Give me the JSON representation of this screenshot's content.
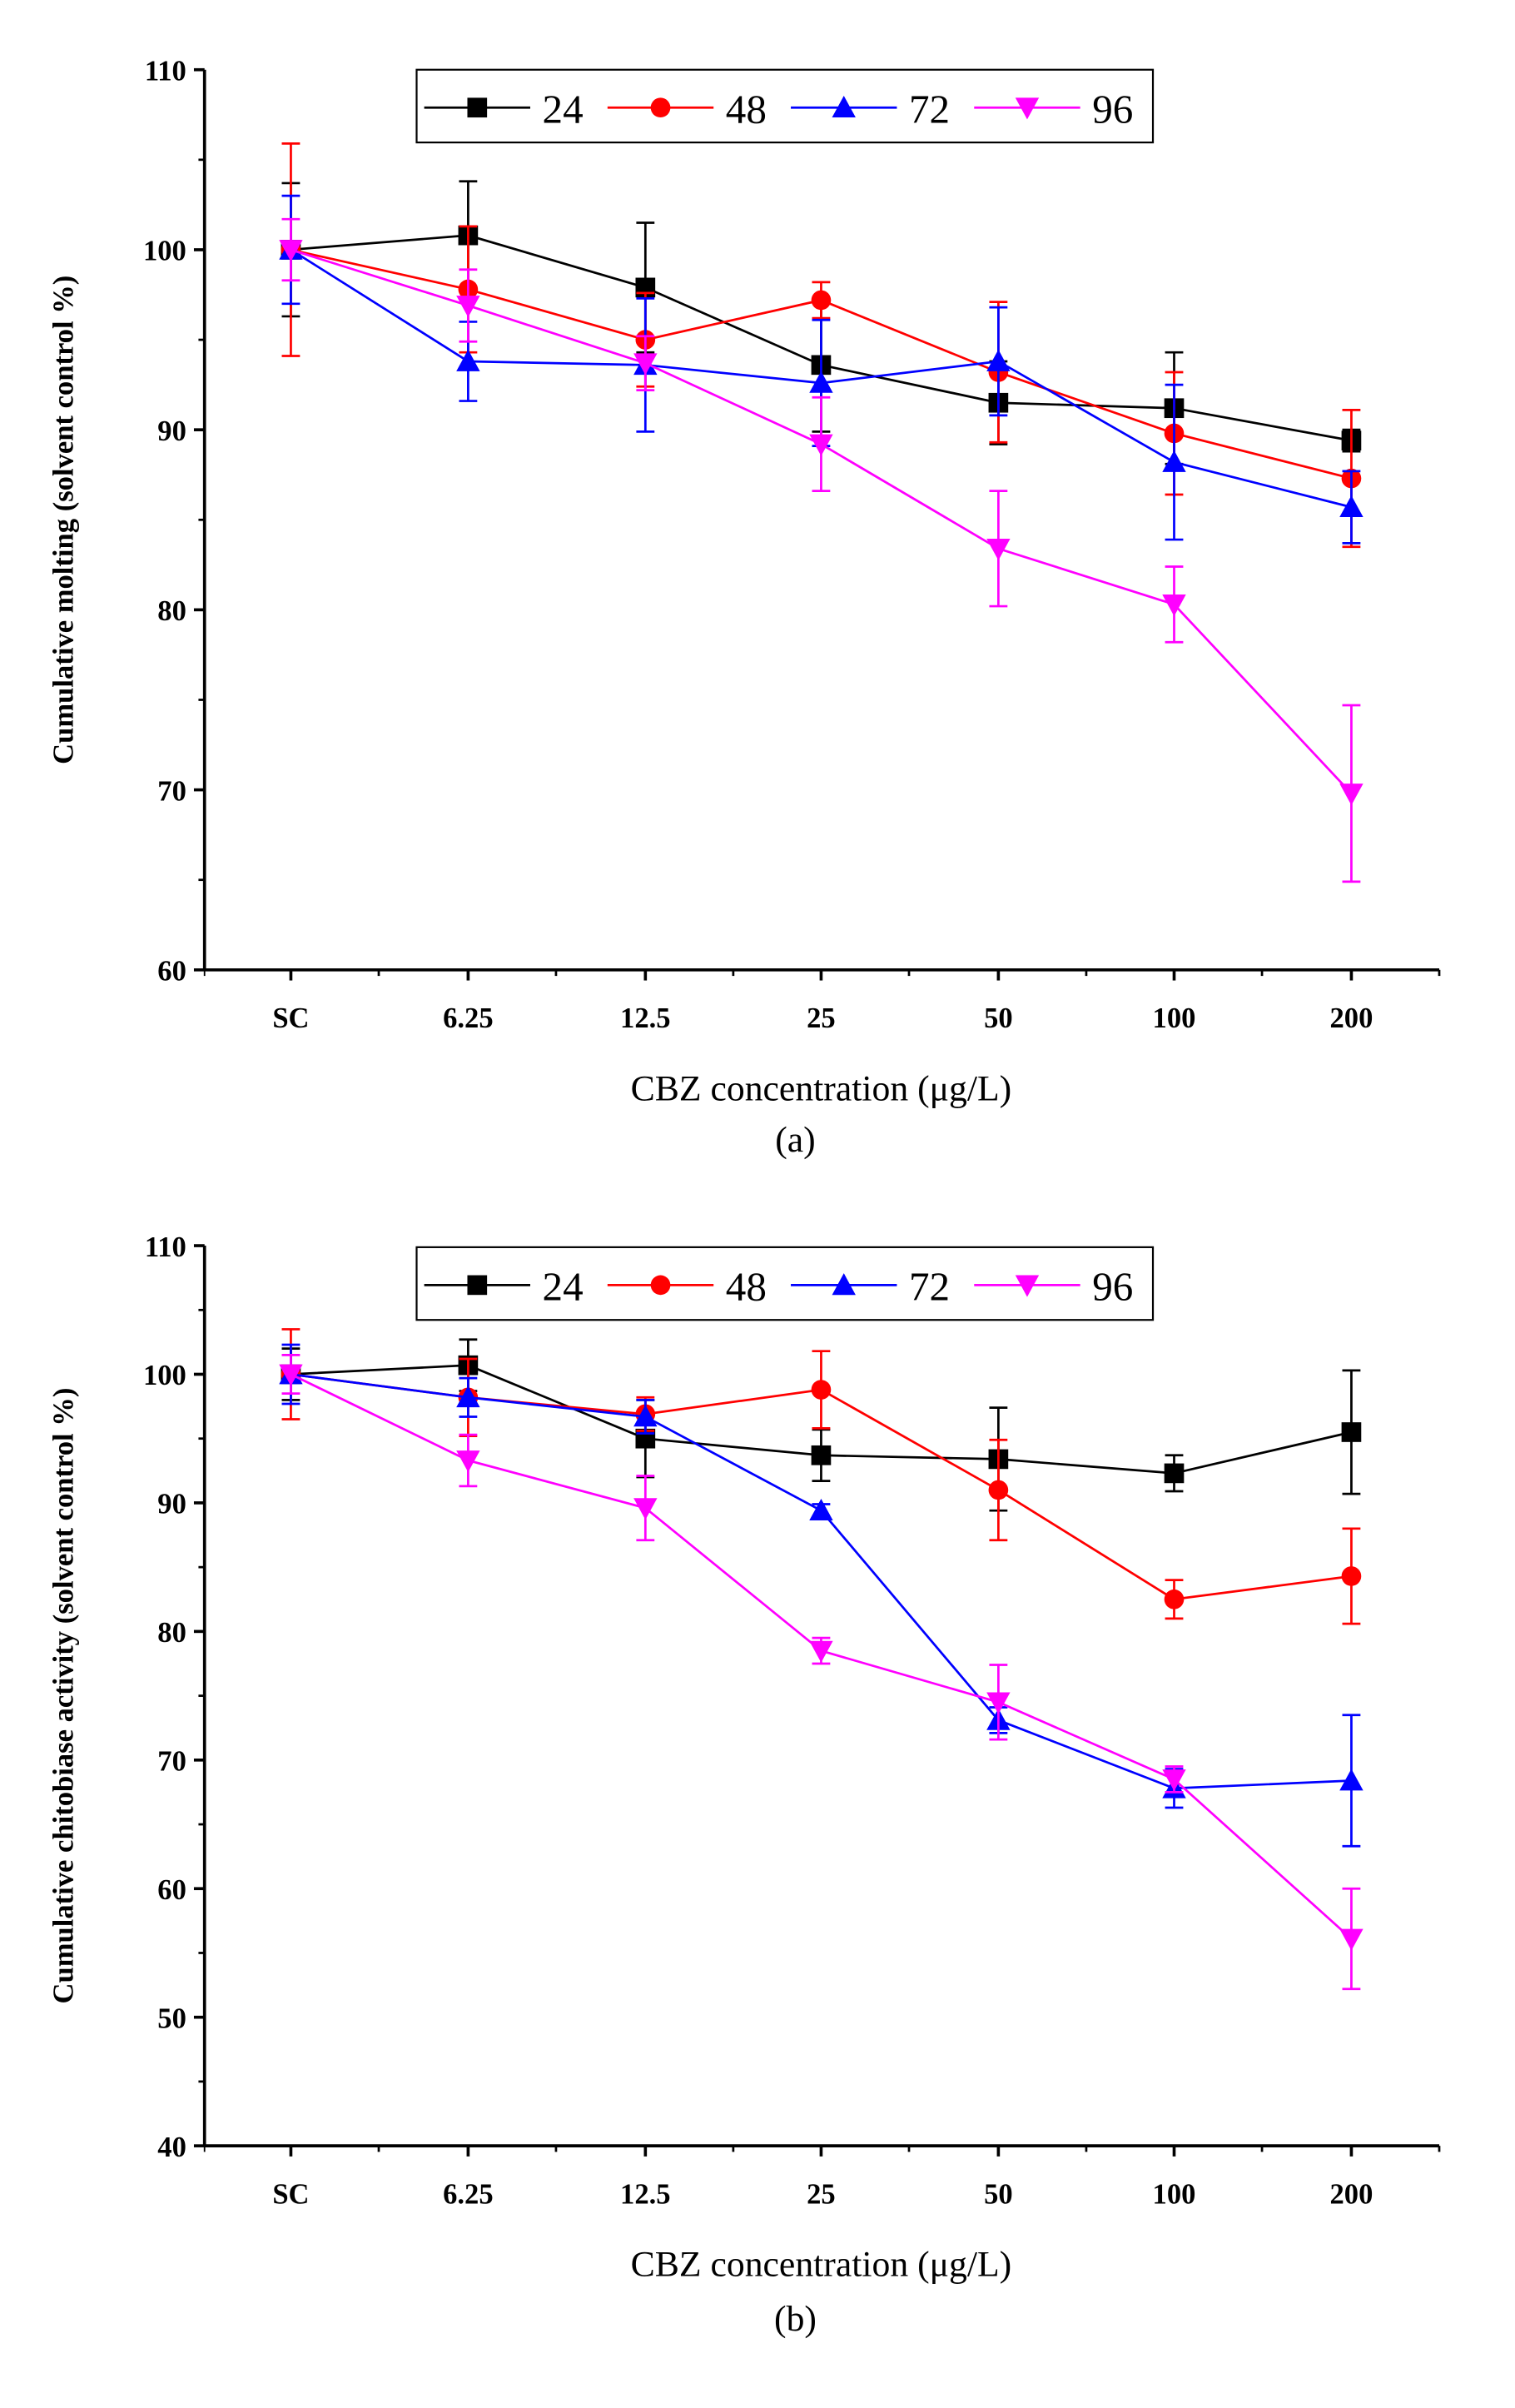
{
  "chart_data": [
    {
      "id": "a",
      "type": "line",
      "caption": "(a)",
      "xlabel": "CBZ concentration (μg/L)",
      "ylabel": "Cumulative molting (solvent control %)",
      "categories": [
        "SC",
        "6.25",
        "12.5",
        "25",
        "50",
        "100",
        "200"
      ],
      "ylim": [
        60,
        110
      ],
      "yticks": [
        60,
        70,
        80,
        90,
        100,
        110
      ],
      "legend_position": "top",
      "series": [
        {
          "name": "24",
          "color": "#000000",
          "marker": "square",
          "values": [
            100,
            100.8,
            97.9,
            93.6,
            91.5,
            91.2,
            89.4
          ],
          "errors": [
            3.7,
            3.0,
            3.6,
            3.7,
            2.3,
            3.1,
            0.6
          ]
        },
        {
          "name": "48",
          "color": "#ff0000",
          "marker": "circle",
          "values": [
            100,
            97.8,
            95.0,
            97.2,
            93.2,
            89.8,
            87.3
          ],
          "errors": [
            5.9,
            3.5,
            2.6,
            1.0,
            3.9,
            3.4,
            3.8
          ]
        },
        {
          "name": "72",
          "color": "#0000ff",
          "marker": "triangle-up",
          "values": [
            100,
            93.8,
            93.6,
            92.6,
            93.8,
            88.2,
            85.7
          ],
          "errors": [
            3.0,
            2.2,
            3.7,
            3.5,
            3.0,
            4.3,
            2.0
          ]
        },
        {
          "name": "96",
          "color": "#ff00ff",
          "marker": "triangle-down",
          "values": [
            100,
            96.9,
            93.7,
            89.2,
            83.4,
            80.3,
            69.8
          ],
          "errors": [
            1.7,
            2.0,
            1.5,
            2.6,
            3.2,
            2.1,
            4.9
          ]
        }
      ]
    },
    {
      "id": "b",
      "type": "line",
      "caption": "(b)",
      "xlabel": "CBZ concentration (μg/L)",
      "ylabel": "Cumulative chitobiase activity (solvent control %)",
      "categories": [
        "SC",
        "6.25",
        "12.5",
        "25",
        "50",
        "100",
        "200"
      ],
      "ylim": [
        40,
        110
      ],
      "yticks": [
        40,
        50,
        60,
        70,
        80,
        90,
        100,
        110
      ],
      "legend_position": "top",
      "series": [
        {
          "name": "24",
          "color": "#000000",
          "marker": "square",
          "values": [
            100,
            100.7,
            95.0,
            93.7,
            93.4,
            92.3,
            95.5
          ],
          "errors": [
            2.0,
            2.0,
            3.0,
            2.0,
            4.0,
            1.4,
            4.8
          ]
        },
        {
          "name": "48",
          "color": "#ff0000",
          "marker": "circle",
          "values": [
            100,
            98.2,
            96.9,
            98.8,
            91.0,
            82.5,
            84.3
          ],
          "errors": [
            3.5,
            3.0,
            1.3,
            3.0,
            3.9,
            1.5,
            3.7
          ]
        },
        {
          "name": "72",
          "color": "#0000ff",
          "marker": "triangle-up",
          "values": [
            100,
            98.2,
            96.7,
            89.4,
            73.1,
            67.8,
            68.4
          ],
          "errors": [
            2.3,
            1.5,
            1.3,
            0.5,
            1.0,
            1.5,
            5.1
          ]
        },
        {
          "name": "96",
          "color": "#ff00ff",
          "marker": "triangle-down",
          "values": [
            100,
            93.3,
            89.6,
            78.5,
            74.5,
            68.5,
            56.1
          ],
          "errors": [
            1.5,
            2.0,
            2.5,
            1.0,
            2.9,
            1.0,
            3.9
          ]
        }
      ]
    }
  ]
}
